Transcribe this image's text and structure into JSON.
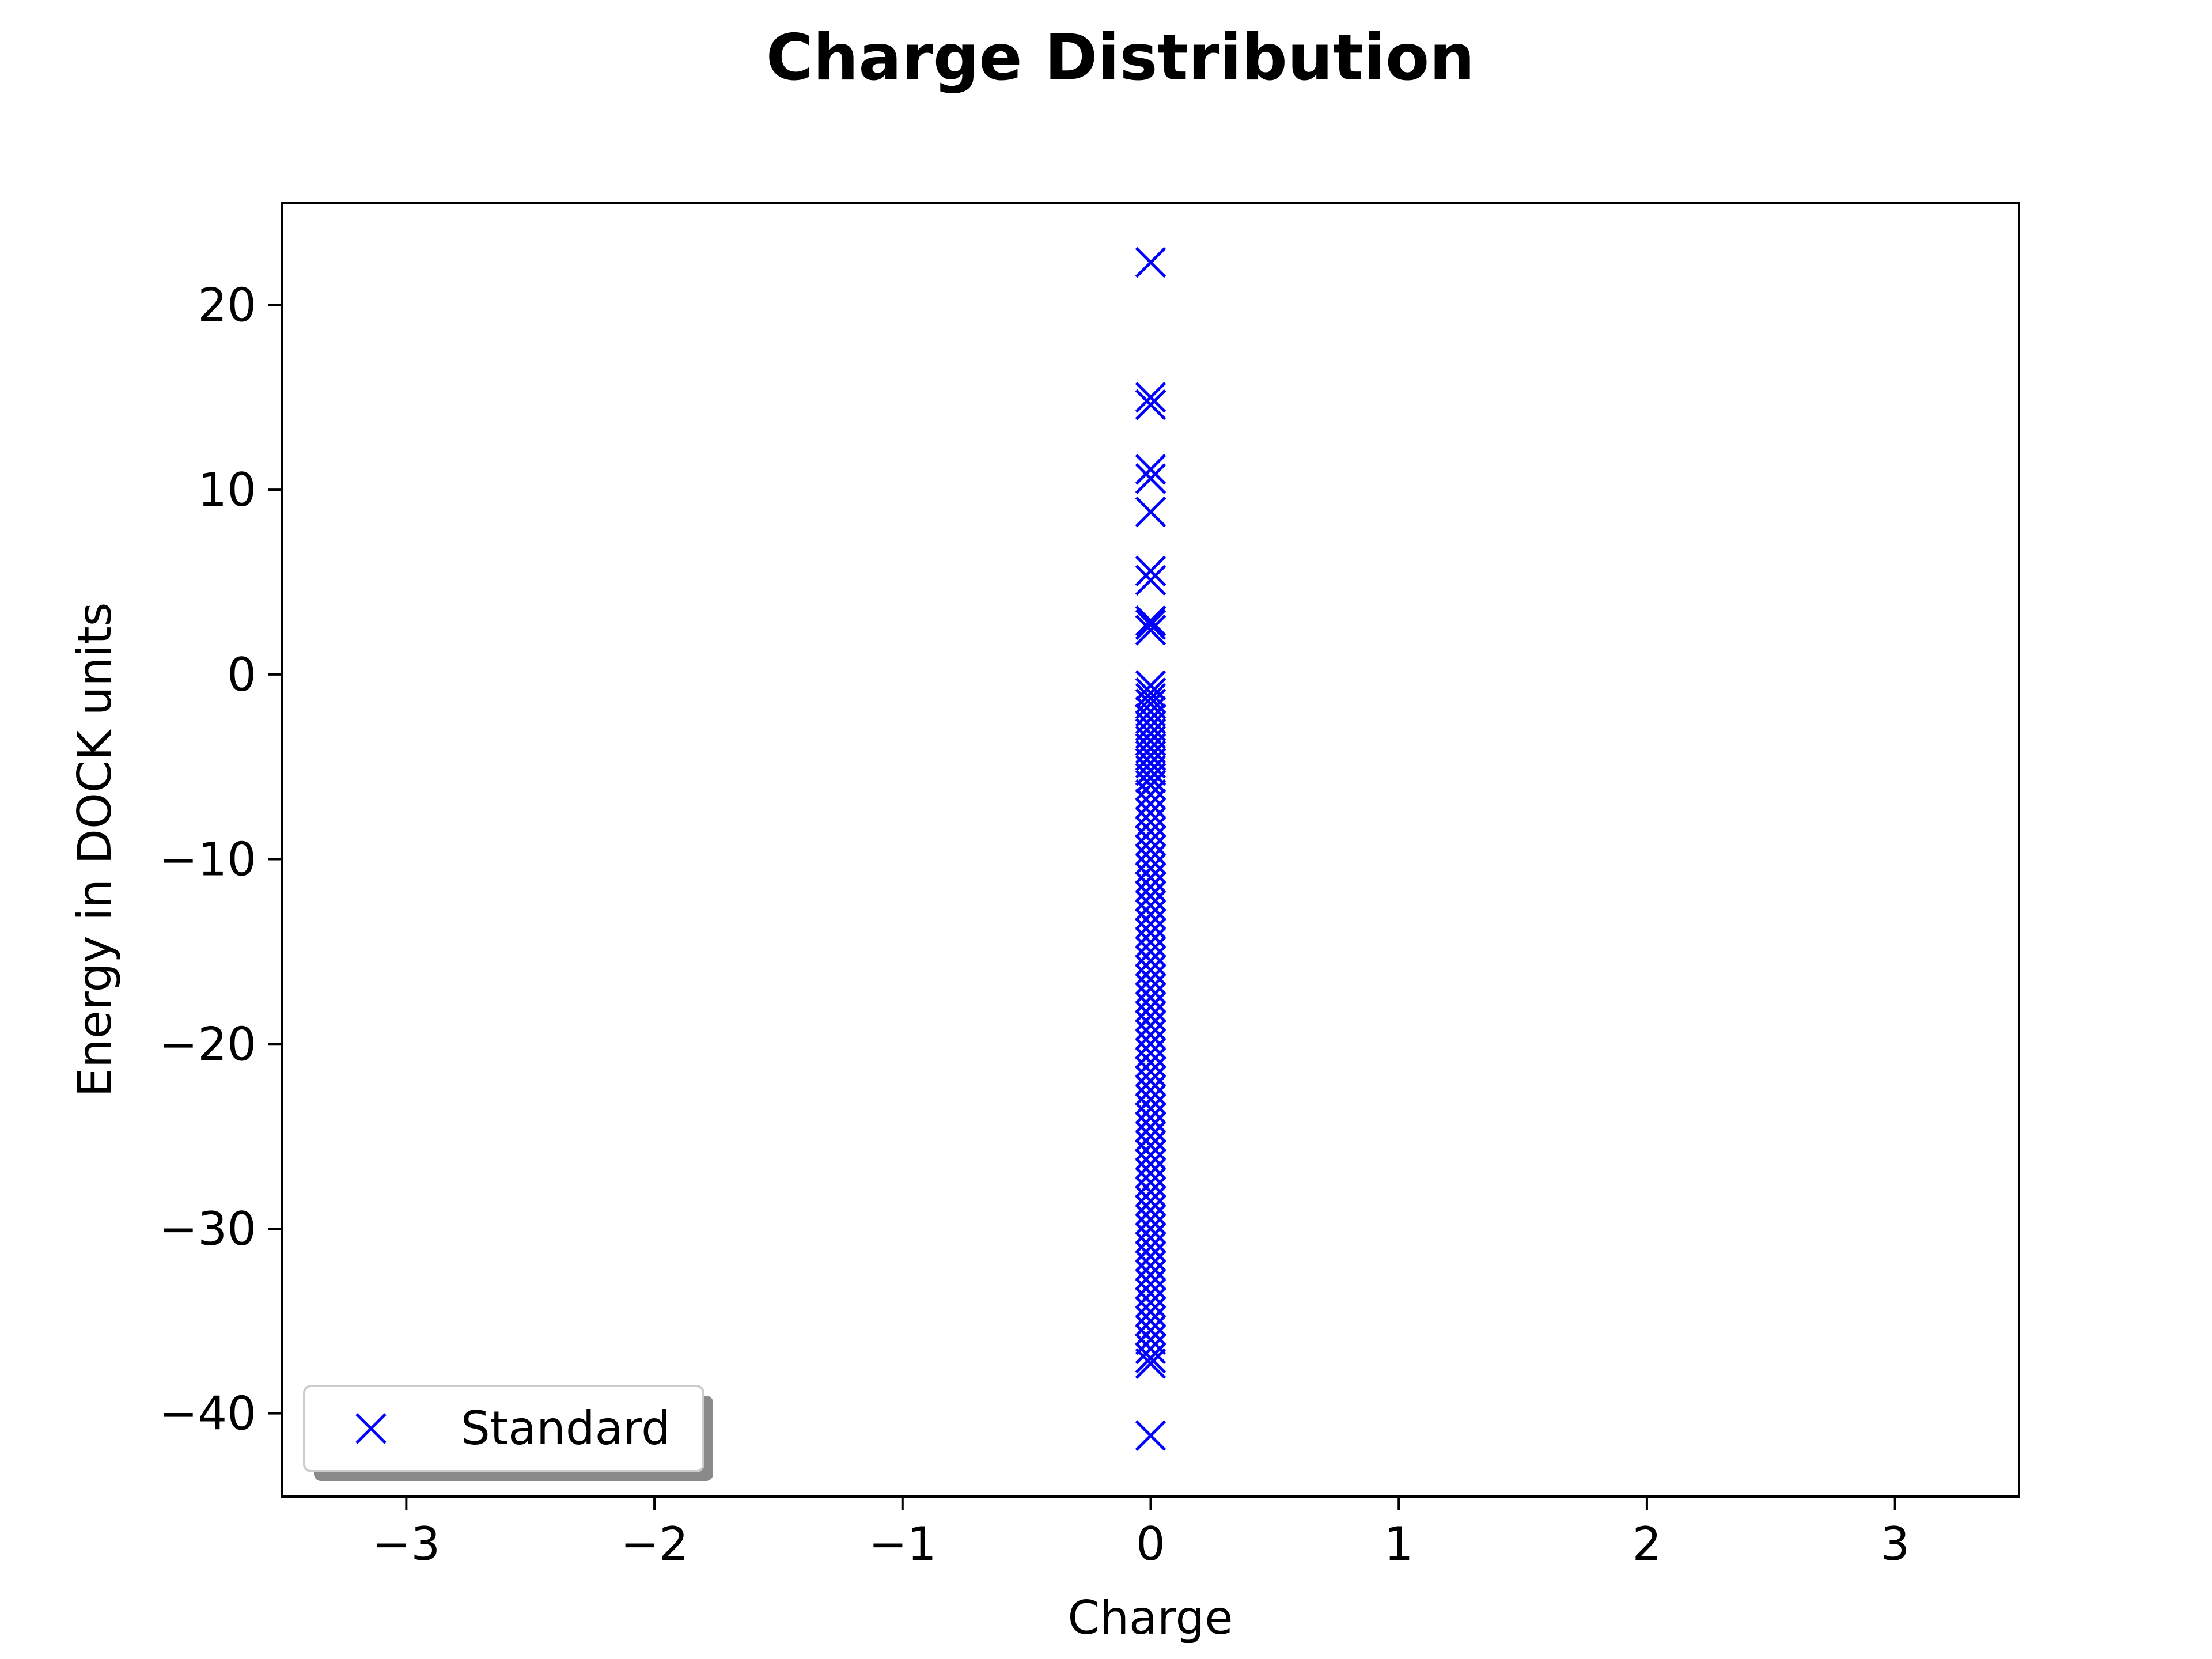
{
  "chart_data": {
    "type": "scatter",
    "title": "Charge Distribution",
    "xlabel": "Charge",
    "ylabel": "Energy in DOCK units",
    "xlim": [
      -3.5,
      3.5
    ],
    "ylim": [
      -44.5,
      25.5
    ],
    "xticks": [
      -3,
      -2,
      -1,
      0,
      1,
      2,
      3
    ],
    "xtick_labels": [
      "−3",
      "−2",
      "−1",
      "0",
      "1",
      "2",
      "3"
    ],
    "yticks": [
      -40,
      -30,
      -20,
      -10,
      0,
      10,
      20
    ],
    "ytick_labels": [
      "−40",
      "−30",
      "−20",
      "−10",
      "0",
      "10",
      "20"
    ],
    "grid": false,
    "legend": {
      "placement": "lower-left",
      "shadow": true
    },
    "series": [
      {
        "name": "Standard",
        "marker": "x",
        "color": "#0000ff",
        "x_values": [
          0
        ],
        "y_values": [
          22.3,
          15.0,
          14.6,
          11.1,
          10.6,
          8.8,
          5.6,
          5.1,
          2.9,
          2.7,
          2.4,
          -0.6,
          -1.0,
          -1.3,
          -1.6,
          -2.0,
          -2.4,
          -2.8,
          -3.2,
          -3.6,
          -4.0,
          -4.4,
          -4.8,
          -5.2,
          -5.6,
          -6.0,
          -6.5,
          -7.0,
          -7.5,
          -8.0,
          -8.5,
          -9.0,
          -9.5,
          -10.0,
          -10.5,
          -11.0,
          -11.5,
          -12.0,
          -12.5,
          -13.0,
          -13.5,
          -14.0,
          -14.5,
          -15.0,
          -15.5,
          -16.0,
          -16.5,
          -17.0,
          -17.5,
          -18.0,
          -18.5,
          -19.0,
          -19.5,
          -20.0,
          -20.5,
          -21.0,
          -21.5,
          -22.0,
          -22.5,
          -23.0,
          -23.5,
          -24.0,
          -24.5,
          -25.0,
          -25.5,
          -26.0,
          -26.5,
          -27.0,
          -27.5,
          -28.0,
          -28.5,
          -29.0,
          -29.5,
          -30.0,
          -30.5,
          -31.0,
          -31.5,
          -32.0,
          -32.5,
          -33.0,
          -33.5,
          -34.0,
          -34.5,
          -35.0,
          -35.5,
          -36.0,
          -36.5,
          -37.0,
          -37.3,
          -41.2
        ]
      }
    ]
  }
}
